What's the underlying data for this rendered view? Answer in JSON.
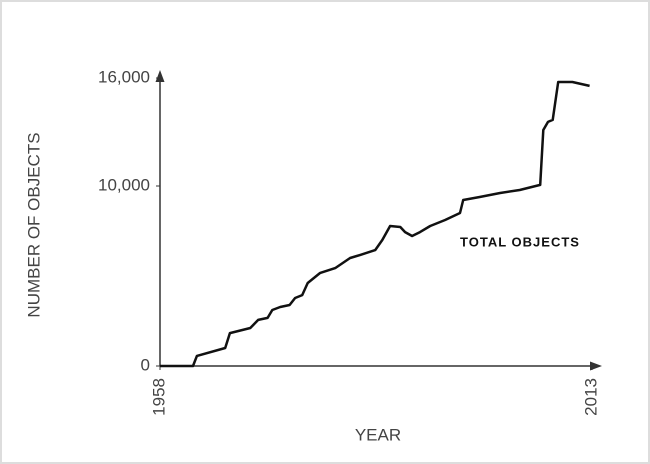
{
  "chart_data": {
    "type": "line",
    "y_label": "NUMBER OF OBJECTS",
    "x_label": "YEAR",
    "annotation": "TOTAL OBJECTS",
    "xlim": [
      1958,
      2013
    ],
    "xticks": [
      1958,
      2013
    ],
    "ylim": [
      0,
      16000
    ],
    "yticks": [
      0,
      {
        "value": 10000,
        "label": "10,000"
      },
      {
        "value": 16000,
        "label": "16,000"
      }
    ],
    "color": "#111111",
    "x": [
      1958.0,
      1962.2,
      1962.7,
      1966.3,
      1966.9,
      1969.5,
      1970.5,
      1971.7,
      1972.3,
      1973.3,
      1974.5,
      1975.2,
      1976.1,
      1976.8,
      1978.4,
      1980.3,
      1982.2,
      1983.5,
      1985.4,
      1986.3,
      1987.3,
      1988.6,
      1989.2,
      1990.1,
      1991.1,
      1992.4,
      1994.3,
      1996.2,
      1996.6,
      1998.7,
      2001.3,
      2003.8,
      2006.4,
      2006.8,
      2007.4,
      2008.0,
      2008.7,
      2010.5,
      2012.7
    ],
    "values": [
      0,
      0,
      560,
      1000,
      1830,
      2110,
      2560,
      2670,
      3110,
      3280,
      3390,
      3780,
      3940,
      4610,
      5170,
      5440,
      6000,
      6170,
      6440,
      7000,
      7780,
      7720,
      7440,
      7220,
      7440,
      7780,
      8110,
      8500,
      9220,
      9390,
      9610,
      9780,
      10060,
      13110,
      13560,
      13670,
      15780,
      15780,
      15560
    ]
  }
}
